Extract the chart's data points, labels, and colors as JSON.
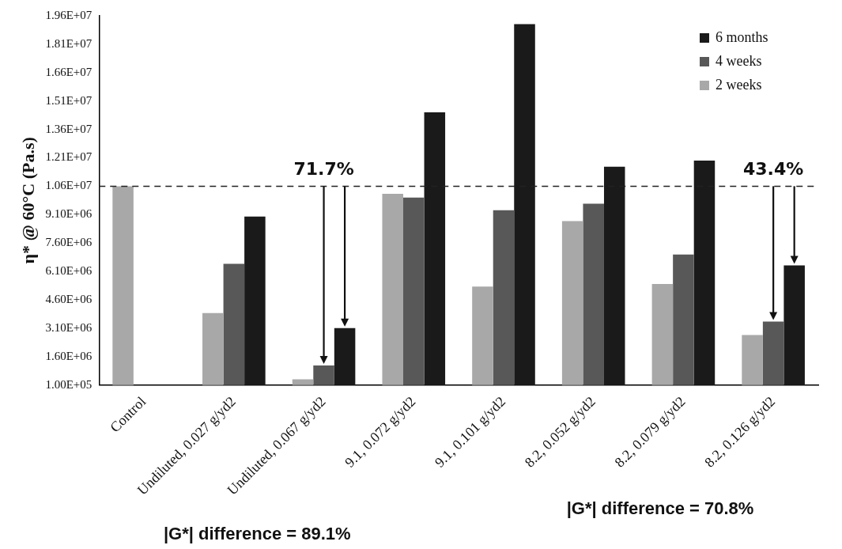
{
  "chart_data": {
    "type": "bar",
    "ylabel": "η* @ 60°C (Pa.s)",
    "categories": [
      "Control",
      "Undiluted, 0.027 g/yd2",
      "Undiluted, 0.067 g/yd2",
      "9.1, 0.072 g/yd2",
      "9.1, 0.101 g/yd2",
      "8.2, 0.052 g/yd2",
      "8.2, 0.079 g/yd2",
      "8.2, 0.126 g/yd2"
    ],
    "series": [
      {
        "name": "2 weeks",
        "color": "#a8a8a8",
        "values": [
          10600000,
          3900000,
          400000,
          10200000,
          5300000,
          8760000,
          5430000,
          2740000
        ]
      },
      {
        "name": "4 weeks",
        "color": "#585858",
        "values": [
          null,
          6500000,
          1130000,
          10000000,
          9330000,
          9680000,
          6990000,
          3450000
        ]
      },
      {
        "name": "6 months",
        "color": "#1a1a1a",
        "values": [
          null,
          9000000,
          3100000,
          14500000,
          19160000,
          11630000,
          11950000,
          6420000
        ]
      }
    ],
    "ylim": [
      100000,
      19600000
    ],
    "yticks": [
      {
        "value": 100000,
        "label": "1.00E+05"
      },
      {
        "value": 1600000,
        "label": "1.60E+06"
      },
      {
        "value": 3100000,
        "label": "3.10E+06"
      },
      {
        "value": 4600000,
        "label": "4.60E+06"
      },
      {
        "value": 6100000,
        "label": "6.10E+06"
      },
      {
        "value": 7600000,
        "label": "7.60E+06"
      },
      {
        "value": 9100000,
        "label": "9.10E+06"
      },
      {
        "value": 10600000,
        "label": "1.06E+07"
      },
      {
        "value": 12100000,
        "label": "1.21E+07"
      },
      {
        "value": 13600000,
        "label": "1.36E+07"
      },
      {
        "value": 15100000,
        "label": "1.51E+07"
      },
      {
        "value": 16600000,
        "label": "1.66E+07"
      },
      {
        "value": 18100000,
        "label": "1.81E+07"
      },
      {
        "value": 19600000,
        "label": "1.96E+07"
      }
    ],
    "ref_lines": [
      {
        "axis": "y",
        "value": 10600000,
        "color": "#222222",
        "line_style": "dashed"
      }
    ],
    "annotations": [
      {
        "text": "71.7%",
        "x": "Undiluted, 0.067 g/yd2",
        "y": 10600000
      },
      {
        "text": "43.4%",
        "x": "8.2, 0.126 g/yd2",
        "y": 10600000
      },
      "|G*| difference = 89.1%",
      "|G*| difference = 70.8%"
    ],
    "legend": "top right",
    "grid": false
  }
}
